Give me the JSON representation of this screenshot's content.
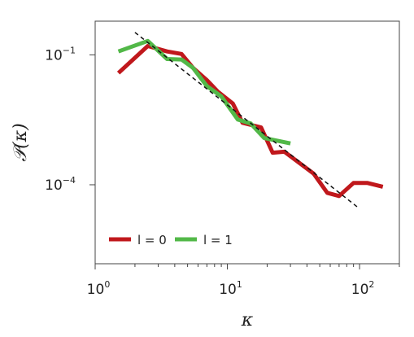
{
  "chart_data": {
    "type": "line",
    "xlabel": "κ",
    "ylabel": "𝒫(κ)",
    "xscale": "log",
    "yscale": "log",
    "xlim": [
      1,
      200
    ],
    "ylim": [
      1.5e-06,
      0.6
    ],
    "grid": false,
    "legend_position": "bottom-left",
    "x_ticks": [
      {
        "value": 1,
        "base": "10",
        "exp": "0"
      },
      {
        "value": 10,
        "base": "10",
        "exp": "1"
      },
      {
        "value": 100,
        "base": "10",
        "exp": "2"
      }
    ],
    "y_ticks": [
      {
        "value": 0.1,
        "base": "10",
        "exp": "−1"
      },
      {
        "value": 0.0001,
        "base": "10",
        "exp": "−4"
      }
    ],
    "series": [
      {
        "name": "l = 0",
        "color": "#c0181c",
        "x": [
          1.5,
          2.5,
          3.5,
          4.5,
          5.5,
          7,
          8.5,
          11,
          13,
          18,
          22,
          27,
          35,
          45,
          57,
          70,
          90,
          115,
          150
        ],
        "y": [
          0.038,
          0.16,
          0.12,
          0.105,
          0.05,
          0.026,
          0.014,
          0.0075,
          0.0027,
          0.0021,
          0.00055,
          0.00058,
          0.00032,
          0.00018,
          6.5e-05,
          5.5e-05,
          0.00011,
          0.00011,
          9e-05
        ]
      },
      {
        "name": "l = 1",
        "color": "#52b848",
        "x": [
          1.5,
          2.5,
          3.5,
          4.5,
          5.5,
          7,
          9,
          12,
          15,
          19,
          30
        ],
        "y": [
          0.12,
          0.21,
          0.08,
          0.078,
          0.05,
          0.019,
          0.011,
          0.0032,
          0.0026,
          0.0012,
          0.0009
        ]
      },
      {
        "name": "",
        "color": "#111111",
        "dashed": true,
        "x": [
          2,
          100
        ],
        "y": [
          0.33,
          2.8e-05
        ]
      }
    ]
  }
}
